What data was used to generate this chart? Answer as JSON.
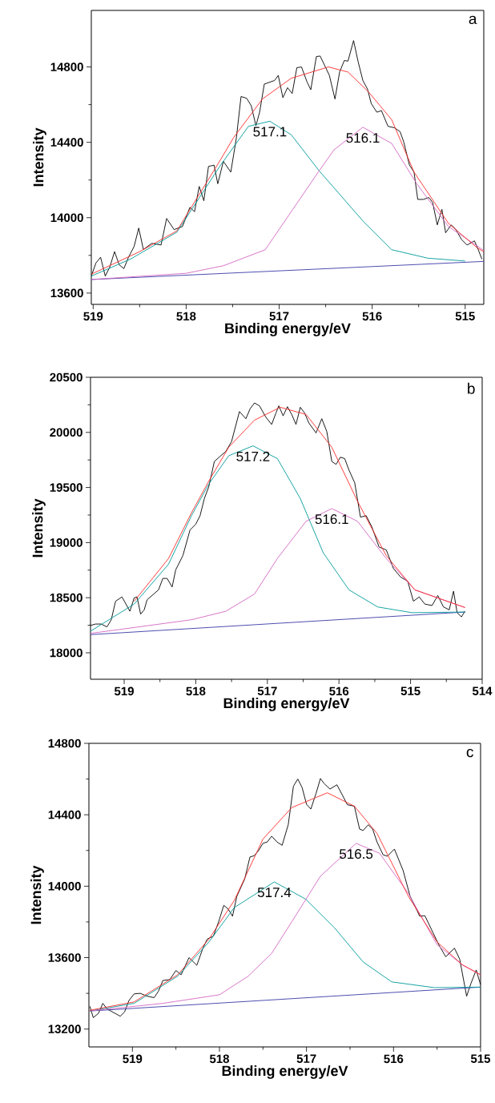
{
  "chart_data": [
    {
      "type": "line",
      "xlabel": "Binding energy/eV",
      "ylabel": "Intensity",
      "xlim": [
        519.02,
        514.8
      ],
      "ylim": [
        13540,
        15100
      ],
      "xticks": [
        519,
        518,
        517,
        516,
        515
      ],
      "yticks": [
        13600,
        14000,
        14400,
        14800
      ],
      "annotations": [
        "a",
        {
          "text": "517.1",
          "x": 517.1,
          "y": 14512
        },
        {
          "text": "516.1",
          "x": 516.1,
          "y": 14480
        }
      ],
      "series": [
        {
          "color": "#000000",
          "x": [
            519.02,
            518.97,
            518.92,
            518.87,
            518.82,
            518.77,
            518.72,
            518.67,
            518.62,
            518.56,
            518.51,
            518.46,
            518.37,
            518.27,
            518.21,
            518.13,
            518.04,
            517.96,
            517.91,
            517.86,
            517.81,
            517.76,
            517.7,
            517.66,
            517.6,
            517.52,
            517.46,
            517.41,
            517.35,
            517.3,
            517.25,
            517.21,
            517.16,
            517.05,
            517.01,
            516.96,
            516.91,
            516.86,
            516.81,
            516.76,
            516.7,
            516.66,
            516.6,
            516.56,
            516.51,
            516.46,
            516.4,
            516.35,
            516.3,
            516.26,
            516.2,
            516.15,
            516.1,
            516.05,
            516.01,
            515.95,
            515.9,
            515.83,
            515.76,
            515.7,
            515.66,
            515.6,
            515.55,
            515.51,
            515.45,
            515.39,
            515.35,
            515.3,
            515.25,
            515.21,
            515.15,
            515.1,
            515.04,
            514.98,
            514.9,
            514.86,
            514.82
          ],
          "values": [
            13690,
            13760,
            13790,
            13690,
            13740,
            13820,
            13750,
            13730,
            13790,
            13847,
            13945,
            13831,
            13864,
            13855,
            13996,
            13937,
            13953,
            14055,
            14032,
            14166,
            14090,
            14272,
            14279,
            14180,
            14299,
            14242,
            14424,
            14643,
            14634,
            14594,
            14488,
            14560,
            14709,
            14728,
            14755,
            14637,
            14690,
            14659,
            14796,
            14800,
            14720,
            14679,
            14855,
            14858,
            14807,
            14755,
            14630,
            14773,
            14834,
            14831,
            14940,
            14826,
            14728,
            14682,
            14606,
            14560,
            14568,
            14485,
            14477,
            14457,
            14401,
            14280,
            14242,
            14097,
            14097,
            14107,
            14081,
            13962,
            14044,
            13920,
            13962,
            13937,
            13885,
            13855,
            13877,
            13831,
            13780
          ]
        },
        {
          "color": "#3a3aa8",
          "x": [
            519.02,
            514.8
          ],
          "values": [
            13672,
            13768
          ]
        },
        {
          "color": "#009a9a",
          "x": [
            519.02,
            518.6,
            518.1,
            517.64,
            517.33,
            517.1,
            516.87,
            516.57,
            516.1,
            515.79,
            515.4,
            515.0
          ],
          "values": [
            13690,
            13780,
            13923,
            14272,
            14485,
            14512,
            14440,
            14249,
            13983,
            13830,
            13785,
            13770
          ]
        },
        {
          "color": "#d466c2",
          "x": [
            519.02,
            518.0,
            517.6,
            517.15,
            516.57,
            516.41,
            516.1,
            515.79,
            515.52,
            515.18,
            514.87,
            514.8
          ],
          "values": [
            13672,
            13705,
            13745,
            13830,
            14249,
            14360,
            14480,
            14394,
            14180,
            13953,
            13850,
            13825
          ]
        },
        {
          "color": "#ff2a2a",
          "x": [
            519.02,
            518.5,
            518.1,
            517.64,
            517.49,
            517.18,
            516.87,
            516.47,
            516.26,
            516.04,
            515.79,
            515.55,
            515.18,
            514.87,
            514.8
          ],
          "values": [
            13700,
            13820,
            13930,
            14300,
            14425,
            14630,
            14740,
            14800,
            14773,
            14668,
            14520,
            14242,
            13970,
            13840,
            13820
          ]
        }
      ]
    },
    {
      "type": "line",
      "xlabel": "Binding energy/eV",
      "ylabel": "Intensity",
      "xlim": [
        519.47,
        514.0
      ],
      "ylim": [
        17760,
        20500
      ],
      "xticks": [
        519,
        518,
        517,
        516,
        515,
        514
      ],
      "yticks": [
        18000,
        18500,
        19000,
        19500,
        20000,
        20500
      ],
      "annotations": [
        "b",
        {
          "text": "517.2",
          "x": 517.2,
          "y": 19878
        },
        {
          "text": "516.1",
          "x": 516.1,
          "y": 19309
        }
      ],
      "series": [
        {
          "color": "#000000",
          "x": [
            519.47,
            519.4,
            519.32,
            519.24,
            519.18,
            519.12,
            519.03,
            518.92,
            518.86,
            518.82,
            518.77,
            518.72,
            518.68,
            518.59,
            518.52,
            518.46,
            518.4,
            518.33,
            518.28,
            518.18,
            518.08,
            518.0,
            517.94,
            517.88,
            517.82,
            517.74,
            517.66,
            517.58,
            517.5,
            517.39,
            517.3,
            517.24,
            517.18,
            517.11,
            517.02,
            516.94,
            516.88,
            516.84,
            516.78,
            516.72,
            516.66,
            516.6,
            516.54,
            516.48,
            516.42,
            516.32,
            516.24,
            516.17,
            516.1,
            516.04,
            515.98,
            515.92,
            515.86,
            515.78,
            515.7,
            515.62,
            515.54,
            515.44,
            515.34,
            515.24,
            515.14,
            515.04,
            514.96,
            514.88,
            514.8,
            514.7,
            514.62,
            514.54,
            514.46,
            514.4,
            514.35,
            514.29,
            514.24
          ],
          "values": [
            18248,
            18261,
            18261,
            18235,
            18300,
            18468,
            18507,
            18377,
            18499,
            18507,
            18351,
            18390,
            18481,
            null,
            18571,
            18675,
            18675,
            18597,
            18753,
            18882,
            19115,
            19167,
            19244,
            19400,
            19503,
            19736,
            19783,
            19827,
            19917,
            20189,
            20124,
            20215,
            20267,
            20241,
            20137,
            20072,
            20176,
            20241,
            20150,
            20233,
            20163,
            20072,
            20228,
            20176,
            20085,
            19995,
            20124,
            20008,
            19736,
            19710,
            19775,
            19762,
            19658,
            19542,
            19231,
            19244,
            19141,
            18960,
            18934,
            18766,
            18688,
            18649,
            18468,
            18507,
            18442,
            18429,
            18520,
            18416,
            18390,
            18559,
            18364,
            18326,
            18377
          ]
        },
        {
          "color": "#3a3aa8",
          "x": [
            519.47,
            514.24
          ],
          "values": [
            18165,
            18370
          ]
        },
        {
          "color": "#009a9a",
          "x": [
            519.47,
            518.86,
            518.38,
            518.06,
            517.82,
            517.54,
            517.2,
            516.86,
            516.54,
            516.22,
            515.86,
            515.46,
            514.98,
            514.24
          ],
          "values": [
            18196,
            18442,
            18804,
            19244,
            19529,
            19788,
            19878,
            19762,
            19400,
            18908,
            18571,
            18416,
            18364,
            18370
          ]
        },
        {
          "color": "#d466c2",
          "x": [
            519.47,
            518.06,
            517.58,
            517.18,
            516.86,
            516.46,
            516.1,
            515.74,
            515.34,
            514.94,
            514.24
          ],
          "values": [
            18176,
            18300,
            18377,
            18533,
            18856,
            19193,
            19309,
            19193,
            18856,
            18571,
            18411
          ]
        },
        {
          "color": "#ff2a2a",
          "x": [
            518.86,
            518.38,
            518.06,
            517.82,
            517.54,
            517.18,
            516.82,
            516.46,
            516.1,
            515.74,
            515.34,
            514.94,
            514.24
          ],
          "values": [
            18468,
            18856,
            19270,
            19555,
            19865,
            20111,
            20228,
            20163,
            19865,
            19374,
            18882,
            18571,
            18411
          ]
        }
      ]
    },
    {
      "type": "line",
      "xlabel": "Binding energy/eV",
      "ylabel": "Intensity",
      "xlim": [
        519.5,
        515.0
      ],
      "ylim": [
        13100,
        14800
      ],
      "xticks": [
        519,
        518,
        517,
        516,
        515
      ],
      "yticks": [
        13200,
        13600,
        14000,
        14400,
        14800
      ],
      "annotations": [
        "c",
        {
          "text": "517.4",
          "x": 517.37,
          "y": 14024
        },
        {
          "text": "516.5",
          "x": 516.43,
          "y": 14240
        }
      ],
      "series": [
        {
          "color": "#000000",
          "x": [
            519.49,
            519.45,
            519.39,
            519.34,
            519.29,
            519.24,
            519.19,
            519.14,
            519.09,
            519.04,
            518.98,
            518.91,
            518.83,
            518.75,
            518.7,
            518.65,
            518.57,
            518.5,
            518.44,
            518.35,
            518.26,
            518.19,
            518.14,
            518.07,
            518.01,
            517.95,
            517.9,
            517.85,
            517.8,
            517.71,
            517.65,
            517.6,
            517.55,
            517.5,
            517.45,
            517.4,
            517.34,
            517.28,
            517.21,
            517.15,
            517.1,
            517.05,
            517.0,
            516.95,
            516.89,
            516.84,
            516.8,
            516.73,
            516.65,
            516.6,
            516.53,
            516.45,
            516.39,
            516.35,
            516.29,
            516.24,
            516.19,
            516.12,
            516.07,
            515.99,
            515.89,
            515.81,
            515.73,
            515.7,
            515.64,
            515.57,
            515.48,
            515.4,
            515.3,
            515.24,
            515.16,
            515.11,
            515.05,
            515.0
          ],
          "values": [
            13328,
            13264,
            13288,
            13344,
            13312,
            null,
            null,
            13272,
            13296,
            13360,
            13397,
            13400,
            13384,
            13376,
            13413,
            13472,
            13477,
            13528,
            13504,
            13600,
            13557,
            13653,
            13704,
            13720,
            13800,
            13893,
            13872,
            13832,
            13944,
            14040,
            14163,
            14171,
            14200,
            14240,
            14248,
            14280,
            14248,
            14229,
            14344,
            14560,
            14600,
            14552,
            14459,
            14432,
            14520,
            14603,
            14576,
            14544,
            14568,
            null,
            14456,
            14448,
            14320,
            14312,
            14344,
            14320,
            14248,
            14176,
            14168,
            14208,
            14088,
            13944,
            13864,
            13832,
            13835,
            null,
            13672,
            13605,
            13653,
            13592,
            13384,
            13456,
            13531,
            13448
          ]
        },
        {
          "color": "#3a3aa8",
          "x": [
            519.49,
            515.0
          ],
          "values": [
            13301,
            13435
          ]
        },
        {
          "color": "#009a9a",
          "x": [
            519.49,
            518.98,
            518.48,
            518.12,
            517.83,
            517.37,
            517.01,
            516.68,
            516.35,
            516.02,
            515.53,
            515.0
          ],
          "values": [
            13301,
            13344,
            13496,
            13688,
            13880,
            14024,
            13928,
            13768,
            13576,
            13464,
            13432,
            13435
          ]
        },
        {
          "color": "#d466c2",
          "x": [
            519.49,
            518.65,
            518.0,
            517.67,
            517.4,
            517.17,
            516.84,
            516.43,
            516.16,
            515.83,
            515.5,
            515.21,
            515.0
          ],
          "values": [
            13301,
            13344,
            13392,
            13496,
            13624,
            13800,
            14056,
            14240,
            14184,
            13960,
            13672,
            13560,
            13504
          ]
        },
        {
          "color": "#ff2a2a",
          "x": [
            519.49,
            518.98,
            518.48,
            518.12,
            517.83,
            517.5,
            517.17,
            516.76,
            516.45,
            516.19,
            515.83,
            515.5,
            515.21,
            515.0
          ],
          "values": [
            13305,
            13352,
            13504,
            13704,
            13920,
            14264,
            14440,
            14523,
            14448,
            14296,
            13944,
            13688,
            13560,
            13504
          ]
        }
      ]
    }
  ]
}
